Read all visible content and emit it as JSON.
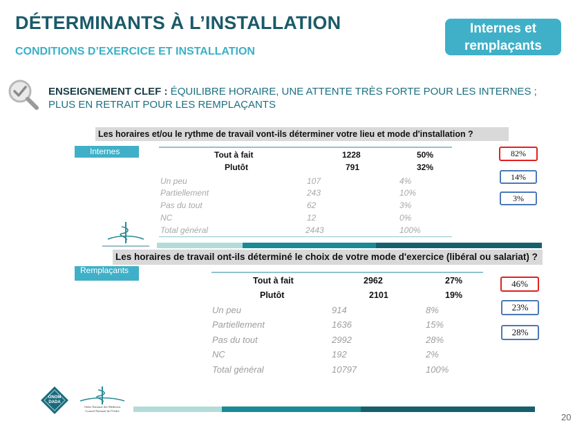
{
  "header": {
    "title": "DÉTERMINANTS À L’INSTALLATION",
    "subtitle": "CONDITIONS D’EXERCICE ET INSTALLATION",
    "badge": "Internes et remplaçants"
  },
  "key_lesson": {
    "label": "ENSEIGNEMENT CLEF :",
    "text": " ÉQUILIBRE HORAIRE, UNE ATTENTE TRÈS FORTE POUR LES INTERNES ; PLUS EN RETRAIT POUR LES REMPLAÇANTS"
  },
  "table1": {
    "question": "Les horaires et/ou le rythme de travail vont-ils déterminer votre lieu et mode d'installation ?",
    "group": "Internes",
    "rows": [
      {
        "label": "Tout à fait",
        "count": "1228",
        "pct": "50%"
      },
      {
        "label": "Plutôt",
        "count": "791",
        "pct": "32%"
      },
      {
        "label": "Un peu",
        "count": "107",
        "pct": "4%"
      },
      {
        "label": "Partiellement",
        "count": "243",
        "pct": "10%"
      },
      {
        "label": "Pas du tout",
        "count": "62",
        "pct": "3%"
      },
      {
        "label": "NC",
        "count": "12",
        "pct": "0%"
      },
      {
        "label": "Total général",
        "count": "2443",
        "pct": "100%"
      }
    ],
    "summary": [
      "82%",
      "14%",
      "3%"
    ]
  },
  "table2": {
    "question": "Les horaires de travail ont-ils déterminé le choix de votre mode d'exercice (libéral ou salariat) ?",
    "group": "Remplaçants",
    "rows": [
      {
        "label": "Tout à fait",
        "count": "2962",
        "pct": "27%"
      },
      {
        "label": "Plutôt",
        "count": "2101",
        "pct": "19%"
      },
      {
        "label": "Un peu",
        "count": "914",
        "pct": "8%"
      },
      {
        "label": "Partiellement",
        "count": "1636",
        "pct": "15%"
      },
      {
        "label": "Pas du tout",
        "count": "2992",
        "pct": "28%"
      },
      {
        "label": "NC",
        "count": "192",
        "pct": "2%"
      },
      {
        "label": "Total général",
        "count": "10797",
        "pct": "100%"
      }
    ],
    "summary": [
      "46%",
      "23%",
      "28%"
    ]
  },
  "footer": {
    "logo_text": "ONOM DADA",
    "org_line1": "Ordre National des Médecins",
    "org_line2": "Conseil National de l'Ordre",
    "page_number": "20"
  },
  "colors": {
    "title": "#1a5a68",
    "accent": "#3fb0c8",
    "highlight_border": "#e02020",
    "box_border": "#4a78b8",
    "stripe_light": "#b3dcd8",
    "stripe_mid": "#1a8a94",
    "stripe_dark": "#16606e"
  }
}
